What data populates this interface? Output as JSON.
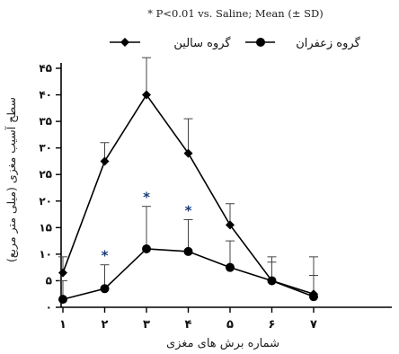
{
  "chart_data": {
    "type": "line",
    "note": "* P<0.01 vs. Saline; Mean (± SD)",
    "xlabel": "شماره برش های مغزی",
    "ylabel": "سطح آسیب مغزی (میلی متر مربع)",
    "x_categories": [
      "۱",
      "۲",
      "۳",
      "۴",
      "۵",
      "۶",
      "۷"
    ],
    "x": [
      1,
      2,
      3,
      4,
      5,
      6,
      7
    ],
    "ylim": [
      0,
      45
    ],
    "yticks": [
      0,
      5,
      10,
      15,
      20,
      25,
      30,
      35,
      40,
      45
    ],
    "ytick_labels": [
      "۰",
      "۵",
      "۱۰",
      "۱۵",
      "۲۰",
      "۲۵",
      "۳۰",
      "۳۵",
      "۴۰",
      "۴۵"
    ],
    "grid": false,
    "legend_position": "top",
    "series": [
      {
        "name": "گروه سالین",
        "marker": "diamond",
        "values": [
          6.5,
          27.5,
          40,
          29,
          15.5,
          5,
          2.5
        ],
        "sd": [
          3,
          3.5,
          7,
          6.5,
          4,
          4.5,
          7
        ]
      },
      {
        "name": "گروه زعفران",
        "marker": "circle",
        "values": [
          1.5,
          3.5,
          11,
          10.5,
          7.5,
          5,
          2
        ],
        "sd": [
          3.5,
          4.5,
          8,
          6,
          5,
          3.5,
          4
        ]
      }
    ],
    "significance_marker": "*",
    "significant_points": [
      2,
      3,
      4
    ]
  }
}
